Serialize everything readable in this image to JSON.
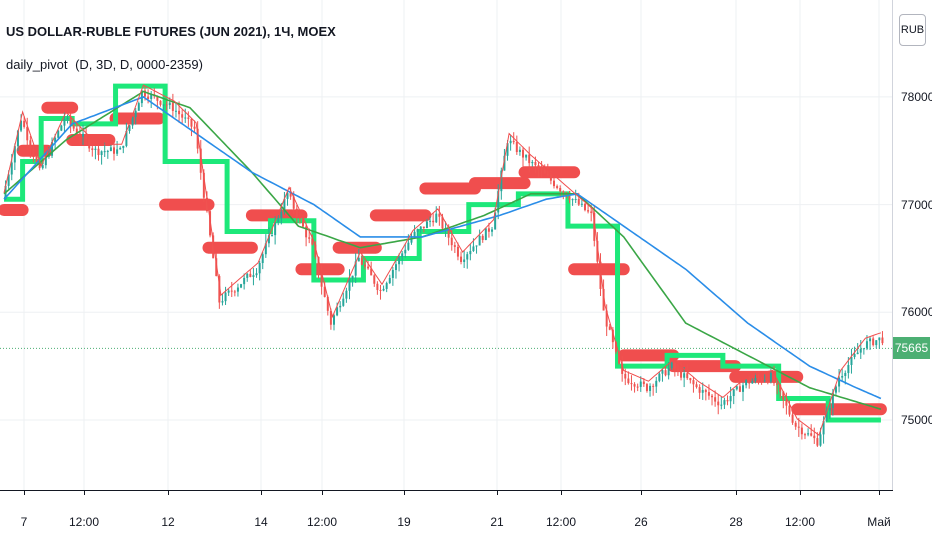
{
  "header": {
    "title": "US DOLLAR-RUBLE FUTURES (JUN 2021), 1Ч, MOEX",
    "indicator_name": "daily_pivot",
    "indicator_params": "(D, 3D, D, 0000-2359)"
  },
  "currency_badge": "RUB",
  "last_price": "75665",
  "colors": {
    "bull": "#26a69a",
    "bear": "#ef5350",
    "band_green": "#1de87a",
    "band_red": "#f04e4e",
    "ma_blue": "#2a8de8",
    "ma_green": "#3aa646",
    "thin_red": "#f04e4e",
    "grid": "#eef0f3",
    "last_price_bg": "#4caf73"
  },
  "chart_data": {
    "type": "candlestick",
    "title": "US DOLLAR-RUBLE FUTURES (JUN 2021), 1Ч, MOEX",
    "y_ticks": [
      75000,
      76000,
      77000,
      78000
    ],
    "y_range": [
      74350,
      78900
    ],
    "x_ticks": [
      "7",
      "12:00",
      "12",
      "14",
      "12:00",
      "19",
      "21",
      "12:00",
      "26",
      "28",
      "12:00",
      "Май"
    ],
    "last_price": 75665,
    "candle_path_anchors": [
      [
        0,
        77050
      ],
      [
        6,
        77800
      ],
      [
        12,
        77300
      ],
      [
        20,
        77800
      ],
      [
        30,
        77500
      ],
      [
        38,
        77500
      ],
      [
        45,
        78050
      ],
      [
        55,
        77900
      ],
      [
        62,
        77700
      ],
      [
        70,
        76100
      ],
      [
        82,
        76400
      ],
      [
        92,
        77100
      ],
      [
        100,
        76600
      ],
      [
        106,
        75900
      ],
      [
        115,
        76500
      ],
      [
        122,
        76200
      ],
      [
        132,
        76700
      ],
      [
        140,
        76900
      ],
      [
        148,
        76500
      ],
      [
        158,
        76800
      ],
      [
        163,
        77600
      ],
      [
        170,
        77400
      ],
      [
        178,
        77200
      ],
      [
        186,
        77000
      ],
      [
        190,
        76900
      ],
      [
        194,
        76000
      ],
      [
        200,
        75400
      ],
      [
        208,
        75300
      ],
      [
        216,
        75500
      ],
      [
        224,
        75300
      ],
      [
        232,
        75150
      ],
      [
        240,
        75350
      ],
      [
        248,
        75400
      ],
      [
        256,
        74950
      ],
      [
        263,
        74800
      ],
      [
        270,
        75400
      ],
      [
        278,
        75700
      ],
      [
        283,
        75750
      ]
    ],
    "ma_blue": [
      [
        0,
        77050
      ],
      [
        22,
        77750
      ],
      [
        45,
        78000
      ],
      [
        60,
        77700
      ],
      [
        80,
        77300
      ],
      [
        100,
        77000
      ],
      [
        115,
        76700
      ],
      [
        135,
        76700
      ],
      [
        160,
        76900
      ],
      [
        175,
        77050
      ],
      [
        185,
        77100
      ],
      [
        200,
        76800
      ],
      [
        220,
        76400
      ],
      [
        240,
        75900
      ],
      [
        260,
        75500
      ],
      [
        275,
        75300
      ],
      [
        283,
        75200
      ]
    ],
    "ma_green": [
      [
        0,
        77100
      ],
      [
        20,
        77600
      ],
      [
        45,
        78050
      ],
      [
        60,
        77900
      ],
      [
        80,
        77300
      ],
      [
        95,
        76800
      ],
      [
        115,
        76600
      ],
      [
        135,
        76700
      ],
      [
        155,
        76900
      ],
      [
        170,
        77100
      ],
      [
        185,
        77100
      ],
      [
        200,
        76700
      ],
      [
        220,
        75900
      ],
      [
        240,
        75600
      ],
      [
        260,
        75300
      ],
      [
        283,
        75100
      ]
    ],
    "pivot_levels_green": [
      [
        0,
        6,
        77050
      ],
      [
        6,
        12,
        77400
      ],
      [
        12,
        22,
        77800
      ],
      [
        22,
        36,
        77750
      ],
      [
        36,
        52,
        78100
      ],
      [
        52,
        72,
        77400
      ],
      [
        72,
        86,
        76750
      ],
      [
        86,
        100,
        76850
      ],
      [
        100,
        116,
        76300
      ],
      [
        116,
        134,
        76500
      ],
      [
        134,
        150,
        76750
      ],
      [
        150,
        166,
        77000
      ],
      [
        166,
        182,
        77100
      ],
      [
        182,
        198,
        76800
      ],
      [
        198,
        214,
        75500
      ],
      [
        214,
        232,
        75600
      ],
      [
        232,
        250,
        75500
      ],
      [
        250,
        266,
        75200
      ],
      [
        266,
        283,
        75000
      ]
    ],
    "pivot_levels_red": [
      [
        0,
        6,
        76950
      ],
      [
        6,
        14,
        77500
      ],
      [
        14,
        22,
        77900
      ],
      [
        22,
        34,
        77600
      ],
      [
        36,
        50,
        77800
      ],
      [
        52,
        66,
        77000
      ],
      [
        66,
        80,
        76600
      ],
      [
        80,
        96,
        76900
      ],
      [
        96,
        108,
        76400
      ],
      [
        108,
        120,
        76600
      ],
      [
        120,
        136,
        76900
      ],
      [
        136,
        152,
        77150
      ],
      [
        152,
        168,
        77200
      ],
      [
        168,
        184,
        77300
      ],
      [
        184,
        200,
        76400
      ],
      [
        200,
        216,
        75600
      ],
      [
        216,
        236,
        75500
      ],
      [
        236,
        256,
        75400
      ],
      [
        256,
        283,
        75100
      ]
    ]
  }
}
